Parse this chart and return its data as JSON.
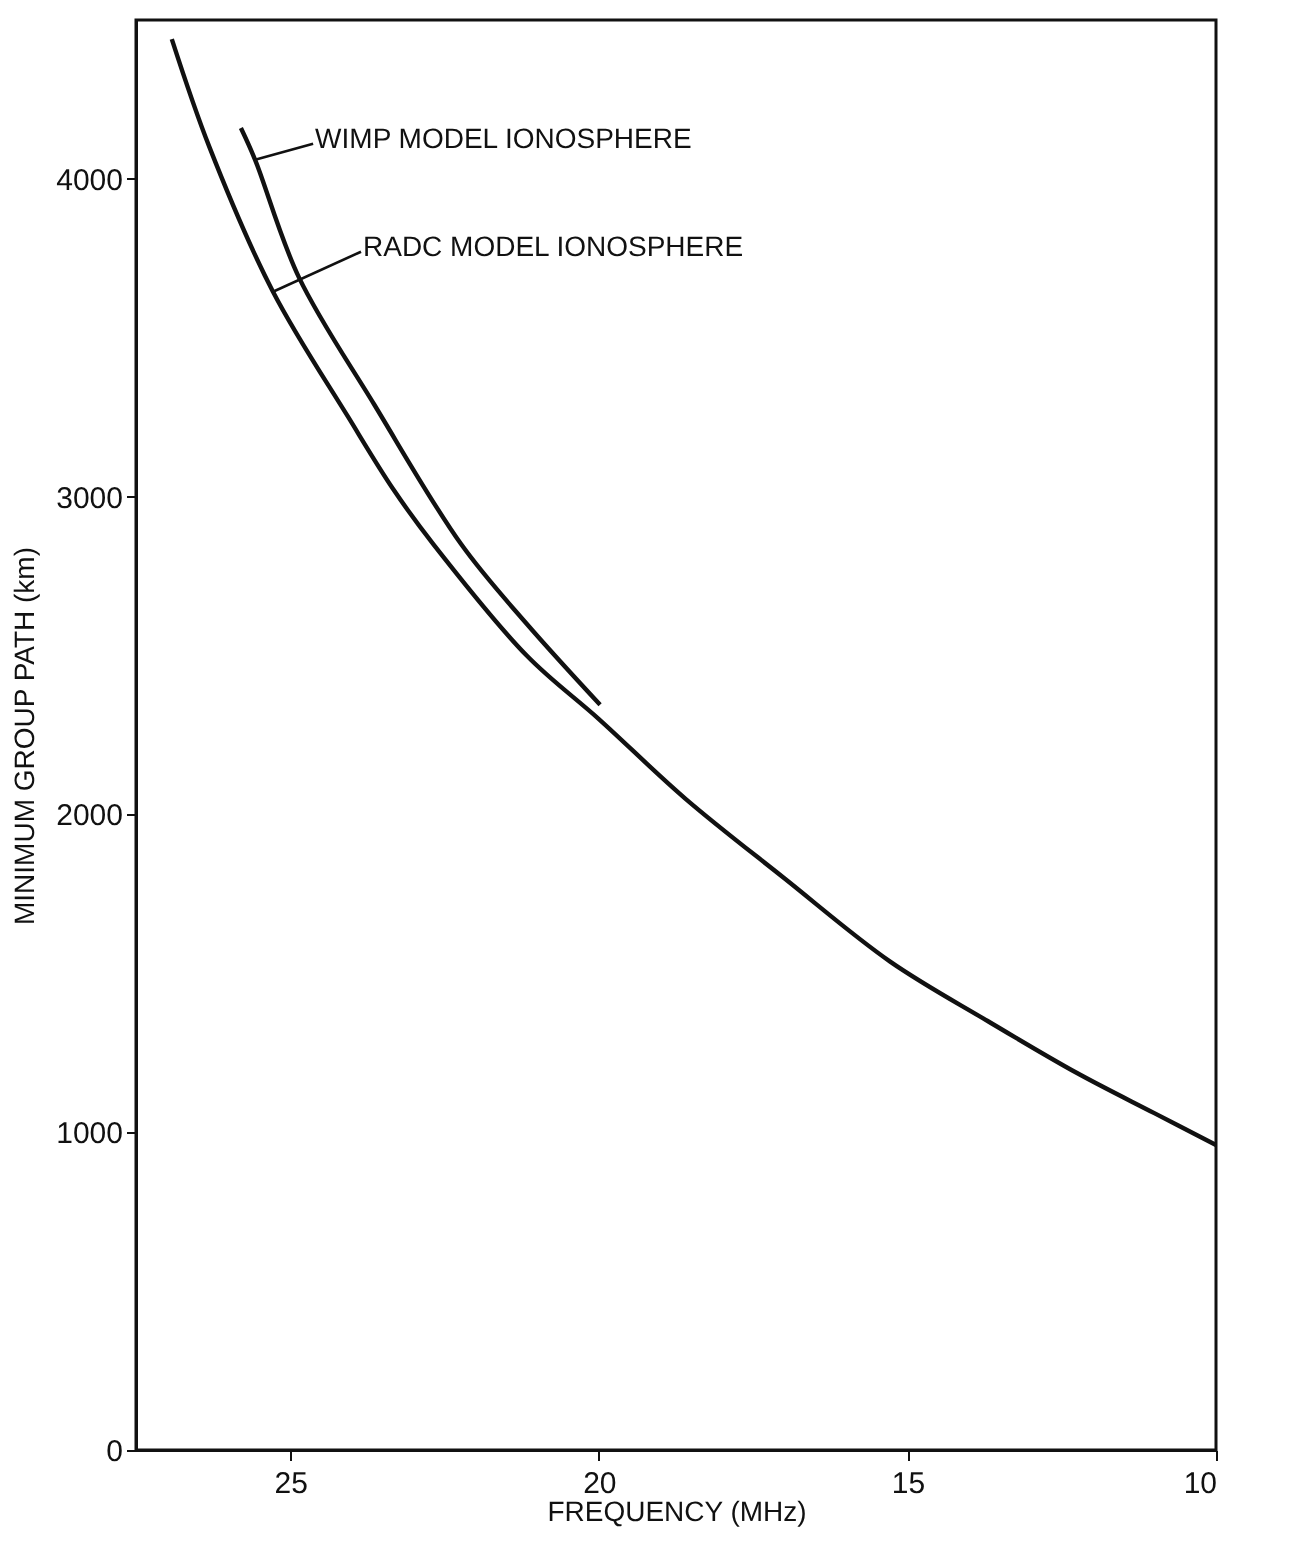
{
  "chart_data": {
    "type": "line",
    "xlabel": "FREQUENCY (MHz)",
    "ylabel": "MINIMUM GROUP PATH (km)",
    "xlim": [
      27.5,
      10
    ],
    "xticks": [
      25,
      20,
      15,
      10
    ],
    "ylim": [
      0,
      4500
    ],
    "yticks": [
      0,
      1000,
      2000,
      3000,
      4000
    ],
    "grid": false,
    "legend": false,
    "line_style": "solid",
    "marker": "none",
    "series": [
      {
        "color": "#111111",
        "x": [
          26.92,
          26.31,
          25.28,
          24.06,
          23.32,
          22.68,
          21.17,
          20.0,
          18.6,
          17.0,
          15.28,
          13.7,
          12.26,
          11.0,
          10.0
        ],
        "values": [
          4440,
          4100,
          3645,
          3250,
          3020,
          2850,
          2500,
          2300,
          2050,
          1800,
          1537,
          1350,
          1187,
          1060,
          960
        ]
      },
      {
        "color": "#111111",
        "x": [
          25.8,
          25.57,
          24.86,
          23.64,
          22.23,
          21.17,
          19.98
        ],
        "values": [
          4160,
          4060,
          3690,
          3290,
          2850,
          2600,
          2345
        ]
      }
    ],
    "annotations": [
      {
        "text": "WIMP MODEL IONOSPHERE",
        "x": 25.57,
        "y": 4060
      },
      {
        "text": "RADC MODEL IONOSPHERE",
        "x": 25.28,
        "y": 3645
      }
    ]
  }
}
